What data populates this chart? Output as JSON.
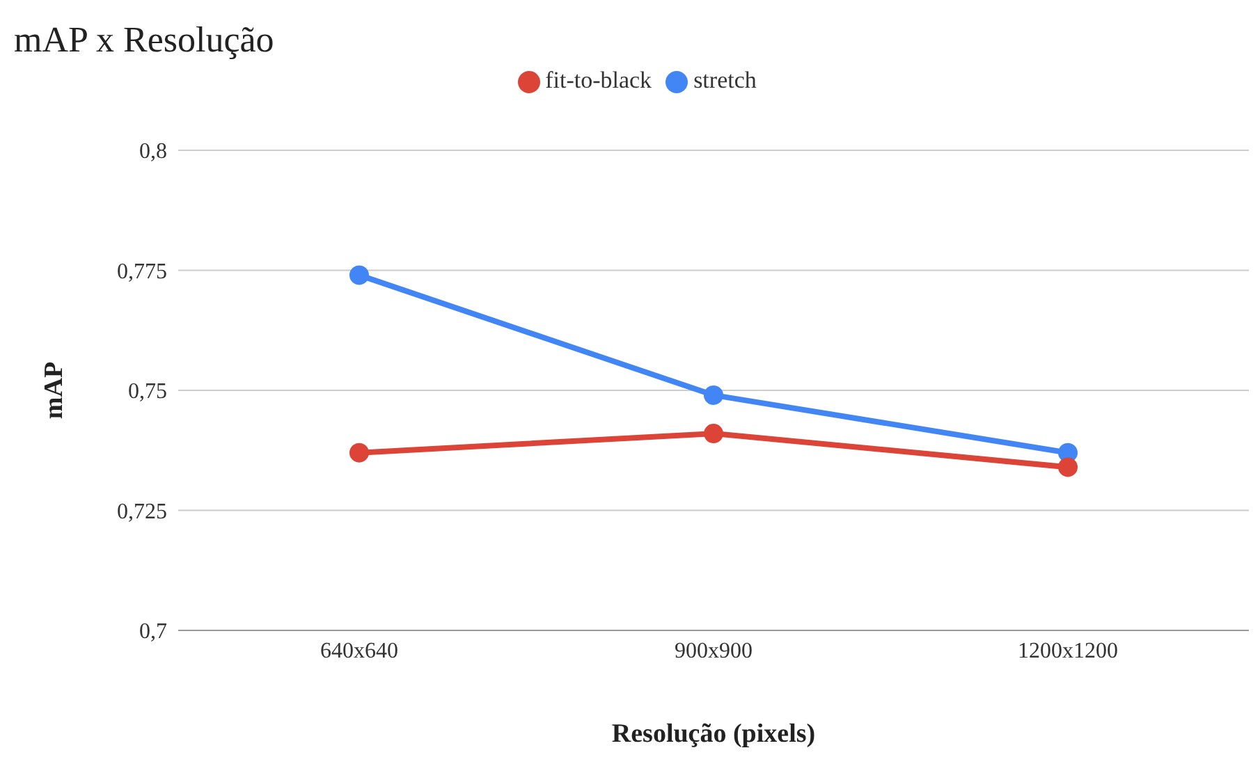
{
  "chart_data": {
    "type": "line",
    "title": "mAP x Resolução",
    "xlabel": "Resolução (pixels)",
    "ylabel": "mAP",
    "categories": [
      "640x640",
      "900x900",
      "1200x1200"
    ],
    "series": [
      {
        "name": "stretch",
        "color": "#4285f4",
        "values": [
          0.774,
          0.749,
          0.737
        ]
      },
      {
        "name": "fit-to-black",
        "color": "#db4437",
        "values": [
          0.737,
          0.741,
          0.734
        ]
      }
    ],
    "ylim": [
      0.7,
      0.8
    ],
    "yticks": [
      {
        "value": 0.7,
        "label": "0,7"
      },
      {
        "value": 0.725,
        "label": "0,725"
      },
      {
        "value": 0.75,
        "label": "0,75"
      },
      {
        "value": 0.775,
        "label": "0,775"
      },
      {
        "value": 0.8,
        "label": "0,8"
      }
    ],
    "grid": "y",
    "legend": "top",
    "marker": "circle",
    "line_style": "solid"
  }
}
